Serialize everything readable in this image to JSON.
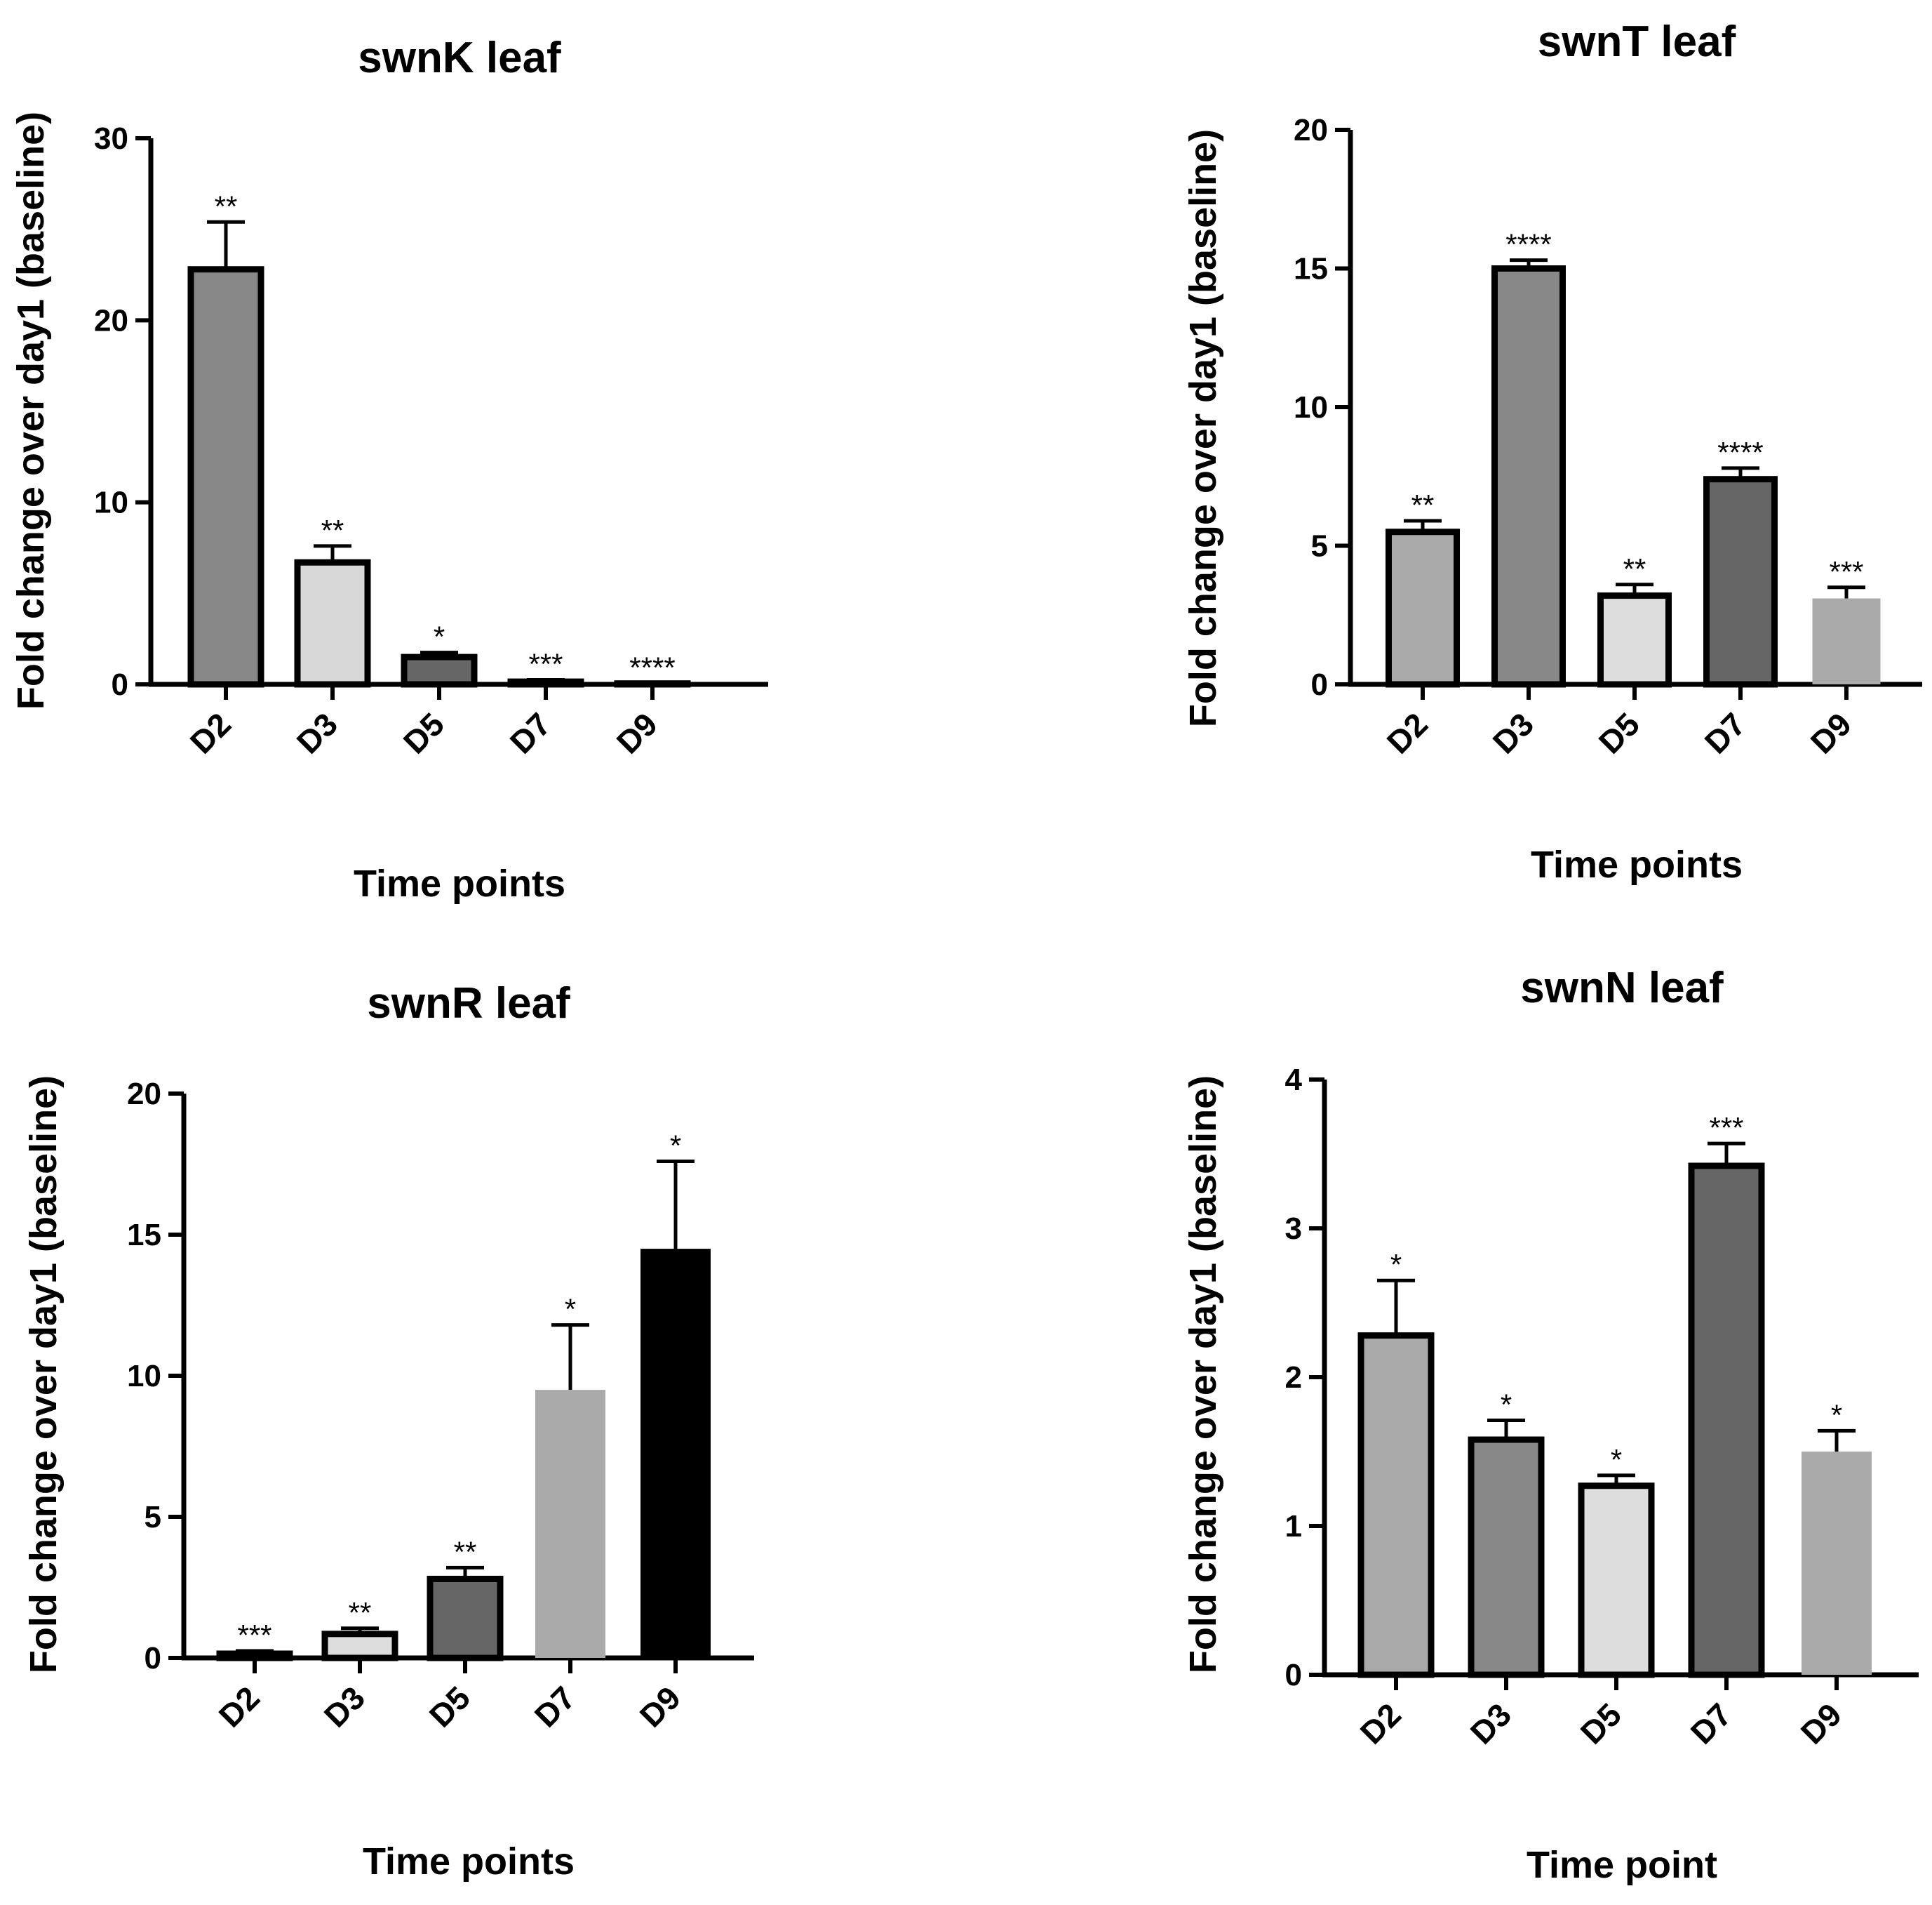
{
  "chart_data": [
    {
      "type": "bar",
      "title": "swnK leaf",
      "xlabel": "Time points",
      "ylabel": "Fold change over day1 (baseline)",
      "ylim": [
        0,
        30
      ],
      "yticks": [
        0,
        10,
        20,
        30
      ],
      "categories": [
        "D2",
        "D3",
        "D5",
        "D7",
        "D9"
      ],
      "values": [
        22.8,
        6.7,
        1.5,
        0.15,
        0.05
      ],
      "errors": [
        2.6,
        0.9,
        0.25,
        0.1,
        0.0
      ],
      "significance": [
        "**",
        "**",
        "*",
        "***",
        "****"
      ],
      "colors": [
        "#888888",
        "#d8d8d8",
        "#666666",
        "#dddddd",
        "#eeeeee"
      ]
    },
    {
      "type": "bar",
      "title": "swnT leaf",
      "xlabel": "Time points",
      "ylabel": "Fold change over day1 (baseline)",
      "ylim": [
        0,
        20
      ],
      "yticks": [
        0,
        5,
        10,
        15,
        20
      ],
      "categories": [
        "D2",
        "D3",
        "D5",
        "D7",
        "D9"
      ],
      "values": [
        5.5,
        15.0,
        3.2,
        7.4,
        3.1
      ],
      "errors": [
        0.4,
        0.3,
        0.4,
        0.4,
        0.4
      ],
      "significance": [
        "**",
        "****",
        "**",
        "****",
        "***"
      ],
      "colors": [
        "#aaaaaa",
        "#888888",
        "#dddddd",
        "#666666",
        "#aaaaaa"
      ]
    },
    {
      "type": "bar",
      "title": "swnR leaf",
      "xlabel": "Time points",
      "ylabel": "Fold change over day1 (baseline)",
      "ylim": [
        0,
        20
      ],
      "yticks": [
        0,
        5,
        10,
        15,
        20
      ],
      "categories": [
        "D2",
        "D3",
        "D5",
        "D7",
        "D9"
      ],
      "values": [
        0.15,
        0.85,
        2.8,
        9.5,
        14.5
      ],
      "errors": [
        0.1,
        0.2,
        0.4,
        2.3,
        3.1
      ],
      "significance": [
        "***",
        "**",
        "**",
        "*",
        "*"
      ],
      "colors": [
        "#dddddd",
        "#dddddd",
        "#666666",
        "#aaaaaa",
        "#000000"
      ]
    },
    {
      "type": "bar",
      "title": "swnN leaf",
      "xlabel": "Time point",
      "ylabel": "Fold change over day1 (baseline)",
      "ylim": [
        0,
        4
      ],
      "yticks": [
        0,
        1,
        2,
        3,
        4
      ],
      "categories": [
        "D2",
        "D3",
        "D5",
        "D7",
        "D9"
      ],
      "values": [
        2.28,
        1.58,
        1.27,
        3.42,
        1.5
      ],
      "errors": [
        0.37,
        0.13,
        0.07,
        0.15,
        0.14
      ],
      "significance": [
        "*",
        "*",
        "*",
        "***",
        "*"
      ],
      "colors": [
        "#aaaaaa",
        "#888888",
        "#dddddd",
        "#666666",
        "#aaaaaa"
      ]
    }
  ]
}
